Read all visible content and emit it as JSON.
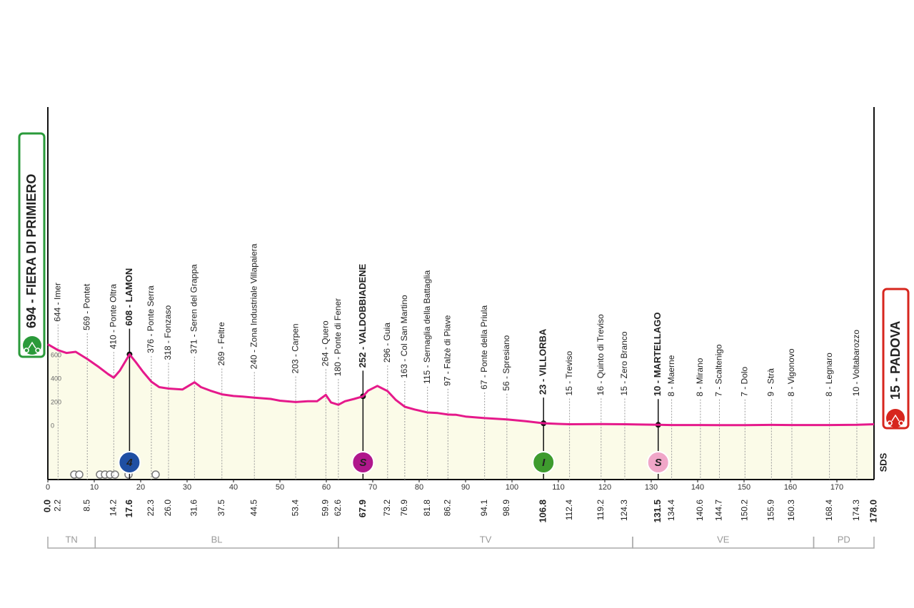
{
  "chart_data": {
    "type": "profile",
    "color": "#e5198b",
    "fill": "#fbfbe8",
    "xlim": [
      0,
      178
    ],
    "ylim": [
      -455,
      2709
    ],
    "xticks": [
      0,
      10,
      20,
      30,
      40,
      50,
      60,
      70,
      80,
      90,
      100,
      110,
      120,
      130,
      140,
      150,
      160,
      170
    ],
    "yticks": [
      0,
      200,
      400,
      600
    ],
    "x": [
      0,
      2.2,
      4,
      6,
      8.5,
      11,
      13,
      14.2,
      15.5,
      17.6,
      19,
      20.5,
      22.3,
      24,
      26,
      29,
      31.6,
      33,
      35,
      37.5,
      40,
      42,
      44.5,
      48,
      50,
      53.4,
      56,
      58,
      59.9,
      61,
      62.6,
      64,
      66,
      67.9,
      69,
      71,
      72,
      73.2,
      75,
      76.9,
      79,
      81.8,
      84,
      86.2,
      88,
      90,
      94.1,
      98.9,
      103,
      106.8,
      110,
      112.4,
      119.2,
      124.3,
      131.5,
      134.4,
      140.6,
      144.7,
      150.2,
      155.9,
      160.3,
      168.4,
      174.3,
      178
    ],
    "values": [
      694,
      644,
      620,
      630,
      569,
      500,
      440,
      410,
      470,
      608,
      540,
      460,
      376,
      330,
      318,
      310,
      371,
      330,
      300,
      269,
      255,
      250,
      240,
      230,
      215,
      203,
      210,
      210,
      264,
      200,
      180,
      210,
      230,
      252,
      300,
      340,
      320,
      296,
      220,
      163,
      140,
      115,
      110,
      97,
      95,
      80,
      67,
      56,
      40,
      23,
      18,
      15,
      16,
      15,
      10,
      8,
      8,
      7,
      7,
      9,
      8,
      8,
      10,
      15
    ],
    "start": {
      "km": {
        "value": 0,
        "label": "0.0"
      },
      "label": "694 - FIERA DI PRIMIERO",
      "color": "#2a9a3a"
    },
    "finish": {
      "km": {
        "value": 178,
        "label": "178.0"
      },
      "label": "15 - PADOVA",
      "color": "#d7261e"
    },
    "waypoints": [
      {
        "km": 2.2,
        "label": "644 - Imer"
      },
      {
        "km": 8.5,
        "label": "569 - Pontet"
      },
      {
        "km": 14.2,
        "label": "410 - Ponte Oltra"
      },
      {
        "km": 17.6,
        "label": "608 - LAMON",
        "major": true
      },
      {
        "km": 22.3,
        "label": "376 - Ponte Serra"
      },
      {
        "km": {
          "value": 26,
          "label": "26.0"
        },
        "label": "318 - Fonzaso"
      },
      {
        "km": 31.6,
        "label": "371 - Seren del Grappa"
      },
      {
        "km": 37.5,
        "label": "269 - Feltre"
      },
      {
        "km": 44.5,
        "label": "240 - Zona Industriale Villapaiera"
      },
      {
        "km": 53.4,
        "label": "203 - Carpen"
      },
      {
        "km": 59.9,
        "label": "264 - Quero"
      },
      {
        "km": 62.6,
        "label": "180 - Ponte di Fener"
      },
      {
        "km": 67.9,
        "label": "252 - VALDOBBIADENE",
        "major": true
      },
      {
        "km": 73.2,
        "label": "296 - Guia"
      },
      {
        "km": 76.9,
        "label": "163 - Col San Martino"
      },
      {
        "km": 81.8,
        "label": "115 - Sernaglia della Battaglia"
      },
      {
        "km": 86.2,
        "label": "97 - Falzè di Piave"
      },
      {
        "km": 94.1,
        "label": "67 - Ponte della Priula"
      },
      {
        "km": 98.9,
        "label": "56 - Spresiano"
      },
      {
        "km": 106.8,
        "label": "23 - VILLORBA",
        "major": true
      },
      {
        "km": 112.4,
        "label": "15 - Treviso"
      },
      {
        "km": 119.2,
        "label": "16 - Quinto di Treviso"
      },
      {
        "km": 124.3,
        "label": "15 - Zero Branco"
      },
      {
        "km": 131.5,
        "label": "10 - MARTELLAGO",
        "major": true
      },
      {
        "km": 134.4,
        "label": "8 - Maerne"
      },
      {
        "km": 140.6,
        "label": "8 - Mirano"
      },
      {
        "km": 144.7,
        "label": "7 - Scaltenigo"
      },
      {
        "km": 150.2,
        "label": "7 - Dolo"
      },
      {
        "km": 155.9,
        "label": "9 - Strà"
      },
      {
        "km": 160.3,
        "label": "8 - Vigonovo"
      },
      {
        "km": 168.4,
        "label": "8 - Legnaro"
      },
      {
        "km": 174.3,
        "label": "10 - Voltabarozzo"
      }
    ],
    "markers": [
      {
        "km": 17.6,
        "label": "4",
        "color": "#1f4fa3"
      },
      {
        "km": 67.9,
        "label": "S",
        "color": "#b0178c"
      },
      {
        "km": 106.8,
        "label": "I",
        "color": "#3e9b2e"
      },
      {
        "km": 131.5,
        "label": "S",
        "color": "#f0a6c8"
      }
    ],
    "provinces": [
      {
        "label": "TN",
        "from": 0,
        "to": 10.2
      },
      {
        "label": "BL",
        "from": 10.2,
        "to": 62.6
      },
      {
        "label": "TV",
        "from": 62.6,
        "to": 126
      },
      {
        "label": "VE",
        "from": 126,
        "to": 165
      },
      {
        "label": "PD",
        "from": 165,
        "to": 178
      }
    ],
    "sds_label": "SDS"
  }
}
